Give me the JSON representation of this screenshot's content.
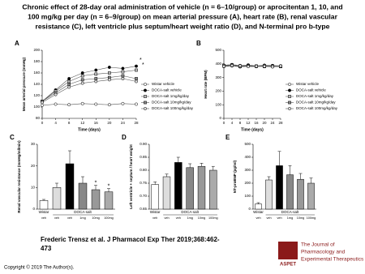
{
  "title": [
    "Chronic effect of 28-day oral administration of vehicle (n = 6–10/group) or aprocitentan 1, 10, and",
    "100 mg/kg per day (n = 6–9/group) on mean arterial pressure (A), heart rate (B), renal vascular",
    "resistance (C), left ventricle plus septum/heart weight ratio (D), and N-terminal pro b-type"
  ],
  "citation": [
    "Frederic Trensz et al. J Pharmacol Exp Ther 2019;368:462-",
    "473"
  ],
  "copyright": "Copyright © 2019 The Author(s).",
  "logo": [
    "ASPET",
    "The Journal of",
    "Pharmacology and",
    "Experimental Therapeutics"
  ],
  "chart_data": [
    {
      "type": "line",
      "label": "A",
      "x_label": "Time (days)",
      "y_label": "Mean arterial pressure (mmHg)",
      "x": [
        0,
        4,
        8,
        12,
        16,
        20,
        24,
        28
      ],
      "xlim": [
        0,
        28
      ],
      "xticks": [
        0,
        4,
        8,
        12,
        16,
        20,
        24,
        28
      ],
      "ylim": [
        80,
        200
      ],
      "yticks": [
        80,
        100,
        120,
        140,
        160,
        180,
        200
      ],
      "annotations": [
        "*",
        "*"
      ],
      "series": [
        {
          "name": "Wistar vehicle",
          "color": "#ffffff",
          "values": [
            103,
            105,
            104,
            106,
            105,
            104,
            106,
            105
          ]
        },
        {
          "name": "DOCA-salt vehicle",
          "color": "#000000",
          "values": [
            110,
            130,
            150,
            160,
            165,
            170,
            168,
            172
          ]
        },
        {
          "name": "DOCA-salt 1mg/kg/day",
          "color": "#bbbbbb",
          "values": [
            110,
            128,
            145,
            155,
            158,
            160,
            162,
            165
          ]
        },
        {
          "name": "DOCA-salt 10mg/kg/day",
          "color": "#888888",
          "values": [
            110,
            125,
            140,
            148,
            150,
            152,
            155,
            150
          ]
        },
        {
          "name": "DOCA-salt 100mg/kg/day",
          "color": "#dddddd",
          "values": [
            108,
            122,
            135,
            142,
            145,
            148,
            150,
            145
          ]
        }
      ]
    },
    {
      "type": "line",
      "label": "B",
      "x_label": "Time (days)",
      "y_label": "Heart rate (BPM)",
      "x": [
        0,
        4,
        8,
        12,
        16,
        20,
        24,
        28
      ],
      "xlim": [
        0,
        28
      ],
      "xticks": [
        0,
        4,
        8,
        12,
        16,
        20,
        24,
        28
      ],
      "ylim": [
        0,
        500
      ],
      "yticks": [
        0,
        100,
        200,
        300,
        400,
        500
      ],
      "series": [
        {
          "name": "Wistar vehicle",
          "color": "#ffffff",
          "values": [
            380,
            385,
            378,
            382,
            380,
            384,
            379,
            381
          ]
        },
        {
          "name": "DOCA-salt vehicle",
          "color": "#000000",
          "values": [
            390,
            395,
            388,
            392,
            385,
            390,
            388,
            386
          ]
        },
        {
          "name": "DOCA-salt 1mg/kg/day",
          "color": "#bbbbbb",
          "values": [
            385,
            392,
            384,
            388,
            382,
            386,
            383,
            380
          ]
        },
        {
          "name": "DOCA-salt 10mg/kg/day",
          "color": "#888888",
          "values": [
            388,
            390,
            380,
            386,
            384,
            380,
            385,
            382
          ]
        },
        {
          "name": "DOCA-salt 100mg/kg/day",
          "color": "#dddddd",
          "values": [
            382,
            388,
            386,
            380,
            383,
            382,
            378,
            384
          ]
        }
      ]
    },
    {
      "type": "bar",
      "label": "C",
      "y_label": "Renal vascular resistance (mmHg/ml/min)",
      "categories": [
        "veh",
        "veh",
        "veh",
        "1mg",
        "10mg",
        "100mg"
      ],
      "groups": [
        "Wistar",
        "DOCA-salt"
      ],
      "values": [
        4,
        10,
        21,
        12,
        9,
        8
      ],
      "errors": [
        0.5,
        2,
        6,
        3,
        2,
        1.5
      ],
      "colors": [
        "#ffffff",
        "#dddddd",
        "#000000",
        "#888888",
        "#999999",
        "#aaaaaa"
      ],
      "significance": [
        null,
        null,
        null,
        null,
        "*",
        "*"
      ],
      "ylim": [
        0,
        30
      ],
      "yticks": [
        0,
        10,
        20,
        30
      ]
    },
    {
      "type": "bar",
      "label": "D",
      "y_label": "Left ventricle + septum / heart weight",
      "categories": [
        "veh",
        "veh",
        "veh",
        "1mg",
        "10mg",
        "100mg"
      ],
      "groups": [
        "Wistar",
        "DOCA-salt"
      ],
      "values": [
        0.745,
        0.775,
        0.83,
        0.81,
        0.815,
        0.8
      ],
      "errors": [
        0.01,
        0.01,
        0.02,
        0.015,
        0.012,
        0.015
      ],
      "colors": [
        "#ffffff",
        "#dddddd",
        "#000000",
        "#888888",
        "#999999",
        "#aaaaaa"
      ],
      "ylim": [
        0.65,
        0.9
      ],
      "yticks": [
        {
          "value": 0.65,
          "label": "0.65"
        },
        {
          "value": 0.7,
          "label": "0.70"
        },
        {
          "value": 0.75,
          "label": "0.75"
        },
        {
          "value": 0.8,
          "label": "0.80"
        },
        {
          "value": 0.85,
          "label": "0.85"
        },
        {
          "value": 0.9,
          "label": "0.90"
        }
      ]
    },
    {
      "type": "bar",
      "label": "E",
      "y_label": "NT-proBNP (pg/ml)",
      "categories": [
        "veh",
        "veh",
        "veh",
        "1mg",
        "10mg",
        "100mg"
      ],
      "groups": [
        "Wistar",
        "DOCA-salt"
      ],
      "values": [
        40,
        225,
        335,
        265,
        230,
        200
      ],
      "errors": [
        10,
        25,
        110,
        70,
        45,
        40
      ],
      "colors": [
        "#ffffff",
        "#dddddd",
        "#000000",
        "#888888",
        "#999999",
        "#aaaaaa"
      ],
      "ylim": [
        0,
        500
      ],
      "yticks": [
        0,
        100,
        200,
        300,
        400,
        500
      ]
    }
  ]
}
